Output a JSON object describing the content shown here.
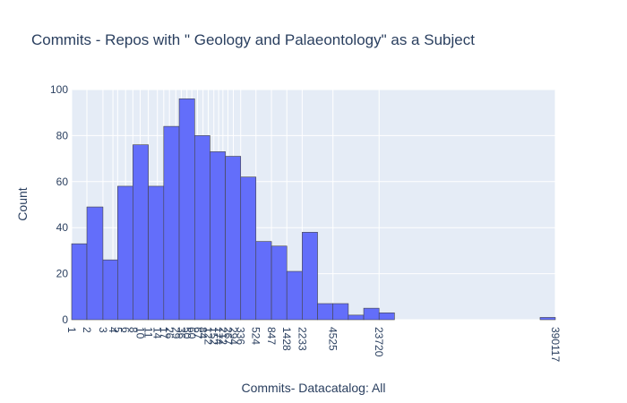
{
  "chart_data": {
    "type": "bar",
    "title": "Commits - Repos with \" Geology and Palaeontology\" as a Subject",
    "xlabel": "Commits- Datacatalog: All",
    "ylabel": "Count",
    "x_scale": "log",
    "ylim": [
      0,
      100
    ],
    "y_ticks": [
      0,
      20,
      40,
      60,
      80,
      100
    ],
    "grid": true,
    "colors": {
      "bar_fill": "#636efa",
      "bar_stroke": "#444444",
      "plot_background": "#e5ecf6",
      "grid": "#ffffff",
      "text": "#2a3f5f"
    },
    "bins": [
      {
        "start": 1,
        "end": 1.5,
        "count": 33
      },
      {
        "start": 1.5,
        "end": 2.3,
        "count": 49
      },
      {
        "start": 2.3,
        "end": 3.4,
        "count": 26
      },
      {
        "start": 3.4,
        "end": 5.1,
        "count": 58
      },
      {
        "start": 5.1,
        "end": 7.7,
        "count": 76
      },
      {
        "start": 7.7,
        "end": 11.6,
        "count": 58
      },
      {
        "start": 11.6,
        "end": 17.5,
        "count": 84
      },
      {
        "start": 17.5,
        "end": 26.4,
        "count": 96
      },
      {
        "start": 26.4,
        "end": 39.7,
        "count": 80
      },
      {
        "start": 39.7,
        "end": 59.8,
        "count": 73
      },
      {
        "start": 59.8,
        "end": 90,
        "count": 71
      },
      {
        "start": 90,
        "end": 135,
        "count": 62
      },
      {
        "start": 135,
        "end": 204,
        "count": 34
      },
      {
        "start": 204,
        "end": 307,
        "count": 32
      },
      {
        "start": 307,
        "end": 462,
        "count": 21
      },
      {
        "start": 462,
        "end": 696,
        "count": 38
      },
      {
        "start": 696,
        "end": 1048,
        "count": 7
      },
      {
        "start": 1048,
        "end": 1578,
        "count": 7
      },
      {
        "start": 1578,
        "end": 2376,
        "count": 2
      },
      {
        "start": 2376,
        "end": 3578,
        "count": 5
      },
      {
        "start": 3578,
        "end": 5388,
        "count": 3
      },
      {
        "start": 260000,
        "end": 390117,
        "count": 1
      }
    ],
    "x_ticks": [
      {
        "value": 1,
        "label": "1"
      },
      {
        "value": 1.5,
        "label": "2"
      },
      {
        "value": 2.3,
        "label": "3"
      },
      {
        "value": 3,
        "label": "4"
      },
      {
        "value": 3.4,
        "label": "5"
      },
      {
        "value": 4.2,
        "label": "6"
      },
      {
        "value": 5.1,
        "label": "8"
      },
      {
        "value": 6.2,
        "label": "10"
      },
      {
        "value": 7.7,
        "label": "11"
      },
      {
        "value": 9.8,
        "label": "14"
      },
      {
        "value": 11.6,
        "label": "17"
      },
      {
        "value": 13.5,
        "label": "26"
      },
      {
        "value": 16,
        "label": "29"
      },
      {
        "value": 18.5,
        "label": "36"
      },
      {
        "value": 21.5,
        "label": "50"
      },
      {
        "value": 24.5,
        "label": "60"
      },
      {
        "value": 28.5,
        "label": "67"
      },
      {
        "value": 33,
        "label": "84"
      },
      {
        "value": 38,
        "label": "122"
      },
      {
        "value": 44,
        "label": "152"
      },
      {
        "value": 50,
        "label": "174"
      },
      {
        "value": 56,
        "label": "212"
      },
      {
        "value": 64,
        "label": "267"
      },
      {
        "value": 74,
        "label": "294"
      },
      {
        "value": 90,
        "label": "336"
      },
      {
        "value": 135,
        "label": "524"
      },
      {
        "value": 204,
        "label": "847"
      },
      {
        "value": 307,
        "label": "1428"
      },
      {
        "value": 462,
        "label": "2233"
      },
      {
        "value": 1048,
        "label": "4525"
      },
      {
        "value": 3578,
        "label": "23720"
      },
      {
        "value": 390117,
        "label": "390117"
      }
    ]
  }
}
